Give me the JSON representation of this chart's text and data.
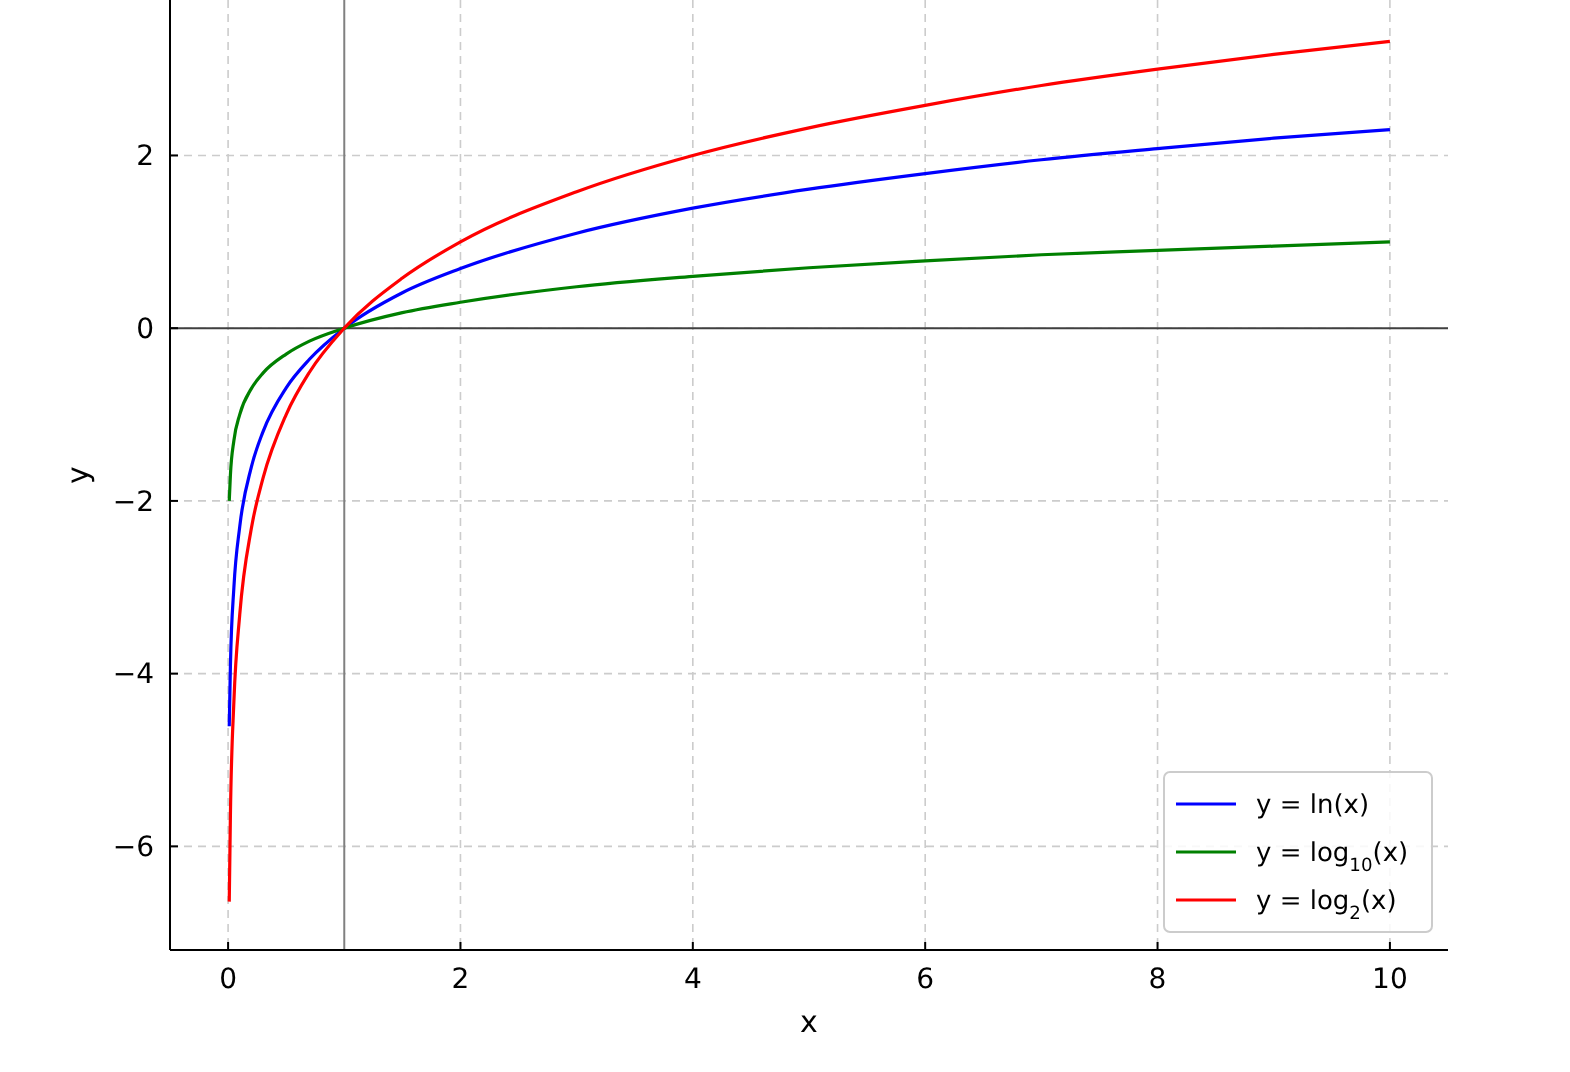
{
  "chart_data": {
    "type": "line",
    "xlabel": "x",
    "ylabel": "y",
    "xlim": [
      -0.5,
      10.5
    ],
    "ylim": [
      -7.2,
      3.8
    ],
    "xticks": [
      0,
      2,
      4,
      6,
      8,
      10
    ],
    "yticks": [
      -6,
      -4,
      -2,
      0,
      2
    ],
    "x": [
      0.01,
      0.02,
      0.05,
      0.1,
      0.2,
      0.3,
      0.5,
      0.7,
      1,
      1.5,
      2,
      3,
      4,
      5,
      6,
      7,
      8,
      9,
      10
    ],
    "series": [
      {
        "name": "y = ln(x)",
        "color": "#0000ff",
        "values": [
          -4.61,
          -3.91,
          -3.0,
          -2.3,
          -1.61,
          -1.2,
          -0.69,
          -0.36,
          0,
          0.41,
          0.69,
          1.1,
          1.39,
          1.61,
          1.79,
          1.95,
          2.08,
          2.2,
          2.3
        ]
      },
      {
        "name": "y = log$_{10}$(x)",
        "color": "#008000",
        "values": [
          -2,
          -1.7,
          -1.3,
          -1,
          -0.7,
          -0.52,
          -0.3,
          -0.15,
          0,
          0.18,
          0.3,
          0.48,
          0.6,
          0.7,
          0.78,
          0.85,
          0.9,
          0.95,
          1
        ]
      },
      {
        "name": "y = log$_{2}$(x)",
        "color": "#ff0000",
        "values": [
          -6.64,
          -5.64,
          -4.32,
          -3.32,
          -2.32,
          -1.74,
          -1,
          -0.51,
          0,
          0.58,
          1,
          1.58,
          2,
          2.32,
          2.58,
          2.81,
          3,
          3.17,
          3.32
        ]
      }
    ],
    "ref_lines": [
      {
        "axis": "x",
        "value": 1,
        "color": "#808080"
      },
      {
        "axis": "y",
        "value": 0,
        "color": "#404040"
      }
    ],
    "grid": true,
    "legend": "bottom right",
    "line_style": "solid",
    "marker": "none"
  }
}
